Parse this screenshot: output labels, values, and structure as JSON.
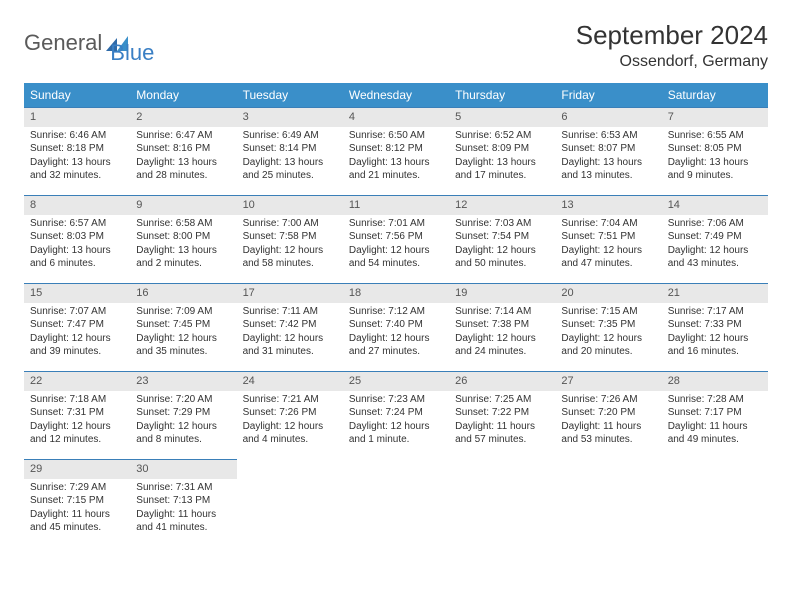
{
  "logo": {
    "part1": "General",
    "part2": "Blue"
  },
  "title": "September 2024",
  "location": "Ossendorf, Germany",
  "colors": {
    "header_bg": "#3a8fc9",
    "header_text": "#ffffff",
    "daynum_bg": "#e8e8e8",
    "daynum_border": "#3a7fb8",
    "body_text": "#333333",
    "logo_gray": "#5a5a5a",
    "logo_blue": "#3a7fc4"
  },
  "weekdays": [
    "Sunday",
    "Monday",
    "Tuesday",
    "Wednesday",
    "Thursday",
    "Friday",
    "Saturday"
  ],
  "weeks": [
    [
      {
        "num": "1",
        "sunrise": "Sunrise: 6:46 AM",
        "sunset": "Sunset: 8:18 PM",
        "daylight": "Daylight: 13 hours and 32 minutes."
      },
      {
        "num": "2",
        "sunrise": "Sunrise: 6:47 AM",
        "sunset": "Sunset: 8:16 PM",
        "daylight": "Daylight: 13 hours and 28 minutes."
      },
      {
        "num": "3",
        "sunrise": "Sunrise: 6:49 AM",
        "sunset": "Sunset: 8:14 PM",
        "daylight": "Daylight: 13 hours and 25 minutes."
      },
      {
        "num": "4",
        "sunrise": "Sunrise: 6:50 AM",
        "sunset": "Sunset: 8:12 PM",
        "daylight": "Daylight: 13 hours and 21 minutes."
      },
      {
        "num": "5",
        "sunrise": "Sunrise: 6:52 AM",
        "sunset": "Sunset: 8:09 PM",
        "daylight": "Daylight: 13 hours and 17 minutes."
      },
      {
        "num": "6",
        "sunrise": "Sunrise: 6:53 AM",
        "sunset": "Sunset: 8:07 PM",
        "daylight": "Daylight: 13 hours and 13 minutes."
      },
      {
        "num": "7",
        "sunrise": "Sunrise: 6:55 AM",
        "sunset": "Sunset: 8:05 PM",
        "daylight": "Daylight: 13 hours and 9 minutes."
      }
    ],
    [
      {
        "num": "8",
        "sunrise": "Sunrise: 6:57 AM",
        "sunset": "Sunset: 8:03 PM",
        "daylight": "Daylight: 13 hours and 6 minutes."
      },
      {
        "num": "9",
        "sunrise": "Sunrise: 6:58 AM",
        "sunset": "Sunset: 8:00 PM",
        "daylight": "Daylight: 13 hours and 2 minutes."
      },
      {
        "num": "10",
        "sunrise": "Sunrise: 7:00 AM",
        "sunset": "Sunset: 7:58 PM",
        "daylight": "Daylight: 12 hours and 58 minutes."
      },
      {
        "num": "11",
        "sunrise": "Sunrise: 7:01 AM",
        "sunset": "Sunset: 7:56 PM",
        "daylight": "Daylight: 12 hours and 54 minutes."
      },
      {
        "num": "12",
        "sunrise": "Sunrise: 7:03 AM",
        "sunset": "Sunset: 7:54 PM",
        "daylight": "Daylight: 12 hours and 50 minutes."
      },
      {
        "num": "13",
        "sunrise": "Sunrise: 7:04 AM",
        "sunset": "Sunset: 7:51 PM",
        "daylight": "Daylight: 12 hours and 47 minutes."
      },
      {
        "num": "14",
        "sunrise": "Sunrise: 7:06 AM",
        "sunset": "Sunset: 7:49 PM",
        "daylight": "Daylight: 12 hours and 43 minutes."
      }
    ],
    [
      {
        "num": "15",
        "sunrise": "Sunrise: 7:07 AM",
        "sunset": "Sunset: 7:47 PM",
        "daylight": "Daylight: 12 hours and 39 minutes."
      },
      {
        "num": "16",
        "sunrise": "Sunrise: 7:09 AM",
        "sunset": "Sunset: 7:45 PM",
        "daylight": "Daylight: 12 hours and 35 minutes."
      },
      {
        "num": "17",
        "sunrise": "Sunrise: 7:11 AM",
        "sunset": "Sunset: 7:42 PM",
        "daylight": "Daylight: 12 hours and 31 minutes."
      },
      {
        "num": "18",
        "sunrise": "Sunrise: 7:12 AM",
        "sunset": "Sunset: 7:40 PM",
        "daylight": "Daylight: 12 hours and 27 minutes."
      },
      {
        "num": "19",
        "sunrise": "Sunrise: 7:14 AM",
        "sunset": "Sunset: 7:38 PM",
        "daylight": "Daylight: 12 hours and 24 minutes."
      },
      {
        "num": "20",
        "sunrise": "Sunrise: 7:15 AM",
        "sunset": "Sunset: 7:35 PM",
        "daylight": "Daylight: 12 hours and 20 minutes."
      },
      {
        "num": "21",
        "sunrise": "Sunrise: 7:17 AM",
        "sunset": "Sunset: 7:33 PM",
        "daylight": "Daylight: 12 hours and 16 minutes."
      }
    ],
    [
      {
        "num": "22",
        "sunrise": "Sunrise: 7:18 AM",
        "sunset": "Sunset: 7:31 PM",
        "daylight": "Daylight: 12 hours and 12 minutes."
      },
      {
        "num": "23",
        "sunrise": "Sunrise: 7:20 AM",
        "sunset": "Sunset: 7:29 PM",
        "daylight": "Daylight: 12 hours and 8 minutes."
      },
      {
        "num": "24",
        "sunrise": "Sunrise: 7:21 AM",
        "sunset": "Sunset: 7:26 PM",
        "daylight": "Daylight: 12 hours and 4 minutes."
      },
      {
        "num": "25",
        "sunrise": "Sunrise: 7:23 AM",
        "sunset": "Sunset: 7:24 PM",
        "daylight": "Daylight: 12 hours and 1 minute."
      },
      {
        "num": "26",
        "sunrise": "Sunrise: 7:25 AM",
        "sunset": "Sunset: 7:22 PM",
        "daylight": "Daylight: 11 hours and 57 minutes."
      },
      {
        "num": "27",
        "sunrise": "Sunrise: 7:26 AM",
        "sunset": "Sunset: 7:20 PM",
        "daylight": "Daylight: 11 hours and 53 minutes."
      },
      {
        "num": "28",
        "sunrise": "Sunrise: 7:28 AM",
        "sunset": "Sunset: 7:17 PM",
        "daylight": "Daylight: 11 hours and 49 minutes."
      }
    ],
    [
      {
        "num": "29",
        "sunrise": "Sunrise: 7:29 AM",
        "sunset": "Sunset: 7:15 PM",
        "daylight": "Daylight: 11 hours and 45 minutes."
      },
      {
        "num": "30",
        "sunrise": "Sunrise: 7:31 AM",
        "sunset": "Sunset: 7:13 PM",
        "daylight": "Daylight: 11 hours and 41 minutes."
      },
      null,
      null,
      null,
      null,
      null
    ]
  ]
}
